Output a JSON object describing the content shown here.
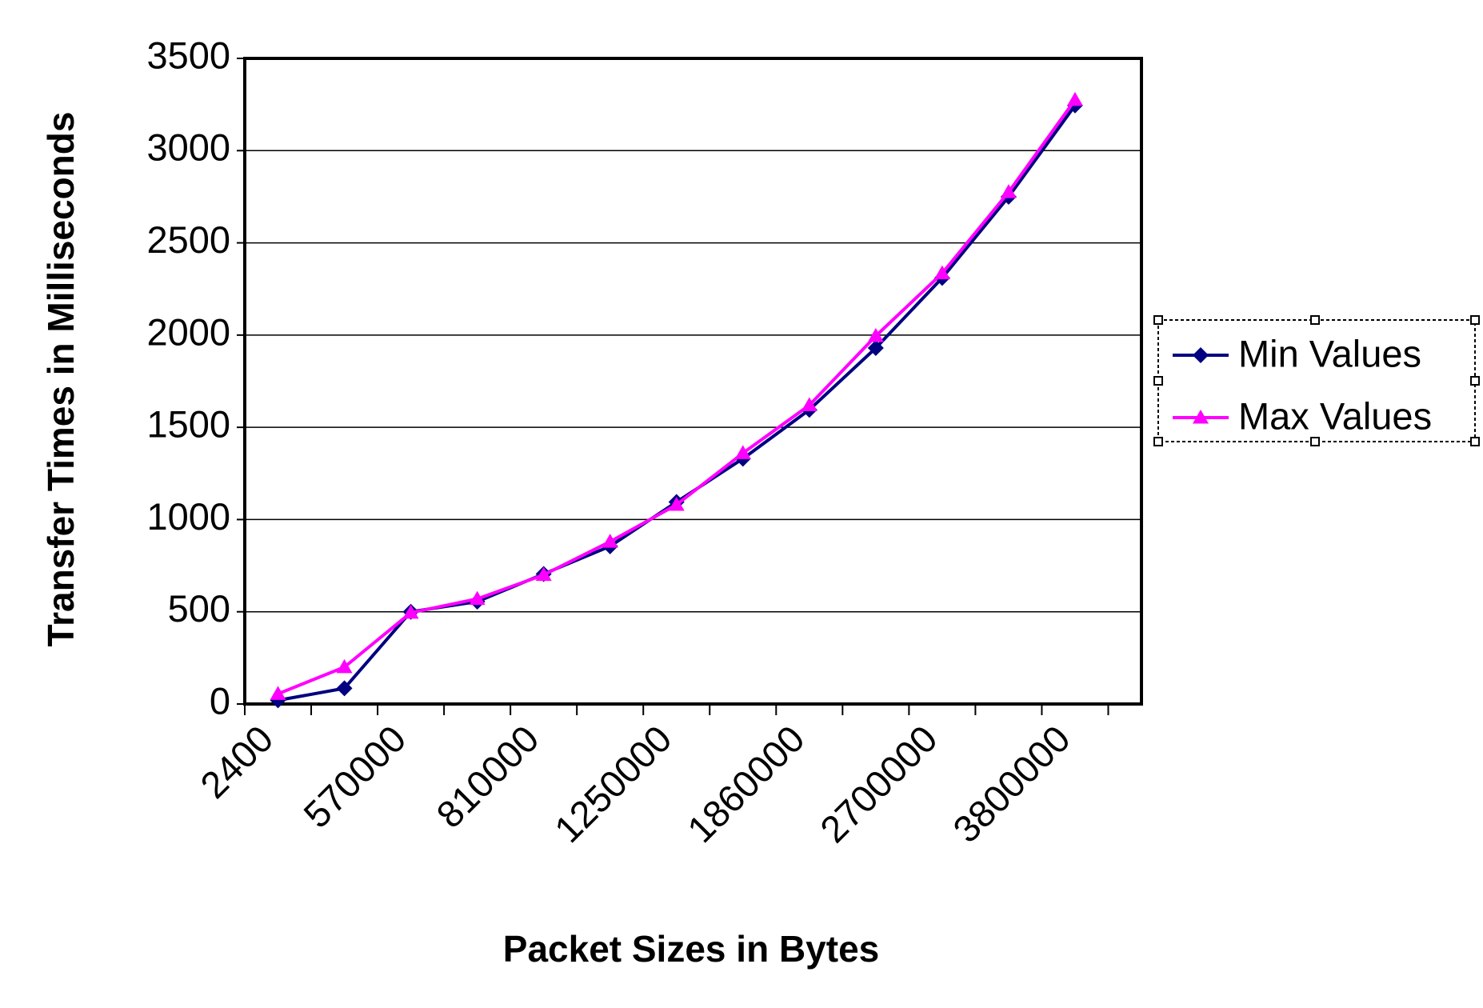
{
  "chart_data": {
    "type": "line",
    "x_label": "Packet Sizes in Bytes",
    "y_label": "Transfer Times in Milliseconds",
    "categories": [
      "2400",
      null,
      "570000",
      null,
      "810000",
      null,
      "1250000",
      null,
      "1860000",
      null,
      "2700000",
      null,
      "3800000"
    ],
    "series": [
      {
        "name": "Min Values",
        "color": "#000080",
        "marker": "diamond",
        "values": [
          20,
          85,
          500,
          555,
          705,
          855,
          1095,
          1330,
          1595,
          1930,
          2310,
          2750,
          3245
        ]
      },
      {
        "name": "Max Values",
        "color": "#ff00ff",
        "marker": "triangle",
        "values": [
          55,
          200,
          495,
          570,
          700,
          880,
          1080,
          1360,
          1620,
          1995,
          2335,
          2775,
          3275
        ]
      }
    ],
    "ylim": [
      0,
      3500
    ],
    "yticks": [
      0,
      500,
      1000,
      1500,
      2000,
      2500,
      3000,
      3500
    ],
    "grid": true,
    "legend": "right"
  }
}
